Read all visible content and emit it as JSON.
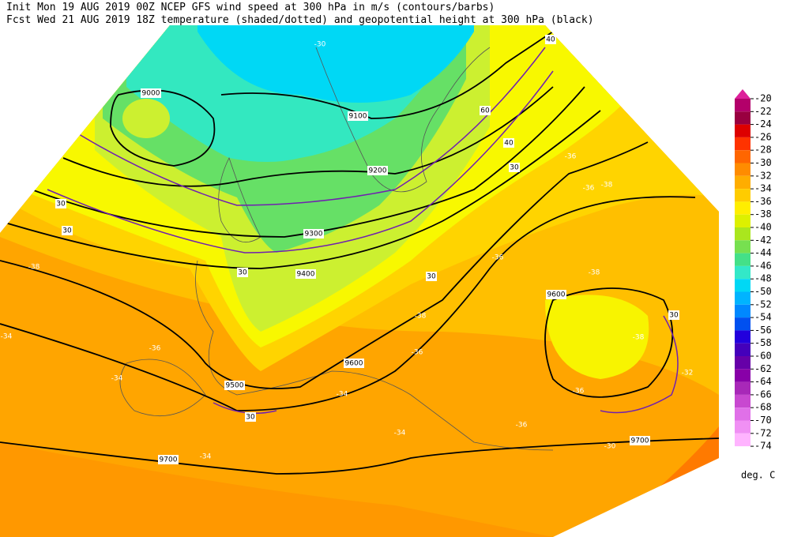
{
  "header": {
    "line1": "Init   Mon 19 AUG 2019 00Z  NCEP GFS wind speed at 300 hPa in m/s (contours/barbs)",
    "line2": "Fcst Wed 21 AUG 2019 18Z  temperature (shaded/dotted) and geopotential height at 300 hPa (black)"
  },
  "colorbar": {
    "levels": [
      -20,
      -22,
      -24,
      -26,
      -28,
      -30,
      -32,
      -34,
      -36,
      -38,
      -40,
      -42,
      -44,
      -46,
      -48,
      -50,
      -52,
      -54,
      -56,
      -58,
      -60,
      -62,
      -64,
      -66,
      -68,
      -70,
      -72,
      -74
    ],
    "colors": [
      "#dd1f9a",
      "#b3006a",
      "#990040",
      "#dd0000",
      "#ff3300",
      "#ff6600",
      "#ff8c00",
      "#ffad00",
      "#ffcc00",
      "#ffee00",
      "#ddf000",
      "#aae61e",
      "#77e050",
      "#44e088",
      "#33e8c8",
      "#00d8f5",
      "#00b4ff",
      "#0088ff",
      "#0050f0",
      "#2200dd",
      "#4400bb",
      "#6600a8",
      "#8800a8",
      "#a828b8",
      "#c848d0",
      "#e070e8",
      "#f090f4",
      "#ffb4ff"
    ],
    "unit": "deg. C"
  },
  "height_labels": [
    "9000",
    "9100",
    "9200",
    "9300",
    "9400",
    "9500",
    "9600",
    "9600",
    "9700",
    "9700"
  ],
  "wind_labels": [
    "40",
    "60",
    "40",
    "30",
    "30",
    "30",
    "30",
    "30",
    "30",
    "30"
  ],
  "temperature_labels": [
    "-30",
    "-36",
    "-36",
    "-38",
    "-38",
    "-36",
    "-36",
    "-34",
    "-34",
    "-38",
    "-36",
    "-34",
    "-34",
    "-36",
    "-38",
    "-38",
    "-36",
    "-32",
    "-34",
    "-30"
  ]
}
